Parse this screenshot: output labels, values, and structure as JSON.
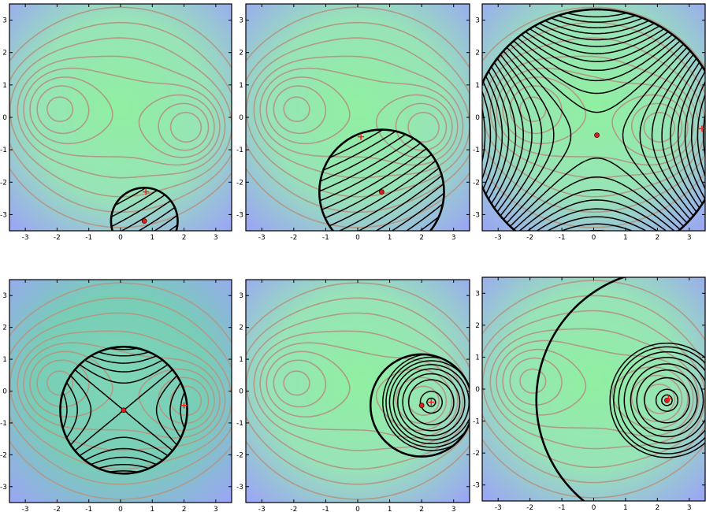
{
  "chart_data": {
    "type": "contour",
    "layout": {
      "rows": 2,
      "cols": 3
    },
    "colors": {
      "background_low": "#9aa6f4",
      "background_high": "#8ff0a0",
      "background_mid": "#7fd6b6",
      "base_contour": "#b09a86",
      "trust_circle": "#000000",
      "model_contour": "#000000",
      "point_marker": "#d62020",
      "cross_marker": "#ff1a1a",
      "frame": "#000000"
    },
    "xlim": [
      -3.5,
      3.5
    ],
    "ylim": [
      -3.5,
      3.5
    ],
    "x_ticks": [
      "-3",
      "-2",
      "-1",
      "0",
      "1",
      "2",
      "3"
    ],
    "y_ticks": [
      "3",
      "2",
      "1",
      "0",
      "-1",
      "-2",
      "-3"
    ],
    "base_function_minima": [
      [
        -2.2,
        0.3
      ],
      [
        2.3,
        -0.35
      ]
    ],
    "panels": [
      {
        "center": [
          0.75,
          -3.2
        ],
        "radius": 1.05,
        "cross": [
          0.8,
          -2.3
        ],
        "model": "tilted-lines"
      },
      {
        "center": [
          0.75,
          -2.3
        ],
        "radius": 1.95,
        "cross": [
          0.1,
          -0.6
        ],
        "model": "tilted-lines"
      },
      {
        "center": [
          0.1,
          -0.55
        ],
        "radius": 3.95,
        "cross": [
          3.4,
          -0.35
        ],
        "model": "saddle"
      },
      {
        "center": [
          0.1,
          -0.6
        ],
        "radius": 2.0,
        "cross": [
          2.0,
          -0.45
        ],
        "model": "saddle-tight"
      },
      {
        "center": [
          2.0,
          -0.45
        ],
        "radius": 1.6,
        "cross": [
          2.3,
          -0.35
        ],
        "model": "bowl"
      },
      {
        "center": [
          2.3,
          -0.35
        ],
        "radius": 4.1,
        "cross": [
          2.35,
          -0.3
        ],
        "model": "bowl-wide"
      }
    ]
  }
}
